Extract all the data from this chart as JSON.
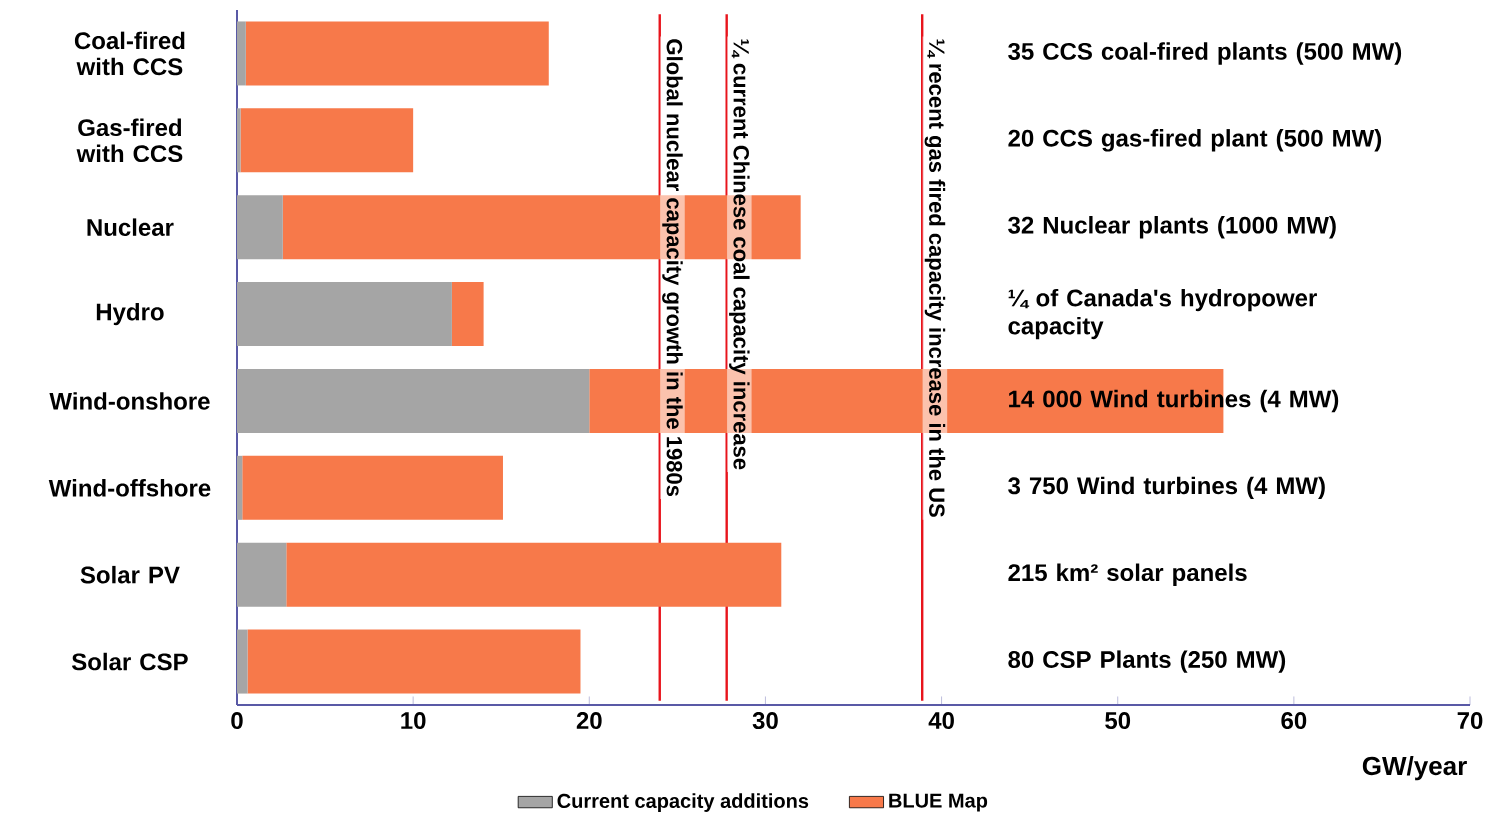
{
  "chart_data": {
    "type": "bar",
    "orientation": "horizontal",
    "stacked": true,
    "categories": [
      "Coal-fired with CCS",
      "Gas-fired with CCS",
      "Nuclear",
      "Hydro",
      "Wind-onshore",
      "Wind-offshore",
      "Solar PV",
      "Solar CSP"
    ],
    "series": [
      {
        "name": "Current capacity additions",
        "color": "#a5a5a5",
        "values": [
          0.5,
          0.2,
          2.6,
          12.2,
          20,
          0.3,
          2.8,
          0.6
        ]
      },
      {
        "name": "BLUE Map",
        "color": "#f7794a",
        "values": [
          17.2,
          9.8,
          29.4,
          1.8,
          36,
          14.8,
          28.1,
          18.9
        ]
      }
    ],
    "xlabel": "GW/year",
    "xlim": [
      0,
      70
    ],
    "xticks": [
      0,
      10,
      20,
      30,
      40,
      50,
      60,
      70
    ],
    "ref_lines": [
      {
        "axis": "x",
        "value": 24,
        "label": "Global nuclear capacity growth  in the 1980s",
        "color": "#e8141c"
      },
      {
        "axis": "x",
        "value": 27.8,
        "label": "¼ current Chinese coal capacity increase",
        "color": "#e8141c"
      },
      {
        "axis": "x",
        "value": 38.9,
        "label": "¼ recent gas fired capacity increase in the US",
        "color": "#e8141c"
      }
    ],
    "annotations": [
      "35 CCS coal-fired plants (500 MW)",
      "20 CCS gas-fired plant (500 MW)",
      "32 Nuclear plants (1000 MW)",
      "¼ of Canada's hydropower capacity",
      "14 000 Wind turbines (4 MW)",
      "3 750 Wind turbines (4 MW)",
      "215 km² solar panels",
      "80 CSP Plants (250 MW)"
    ],
    "legend": "bottom",
    "grid": false
  }
}
